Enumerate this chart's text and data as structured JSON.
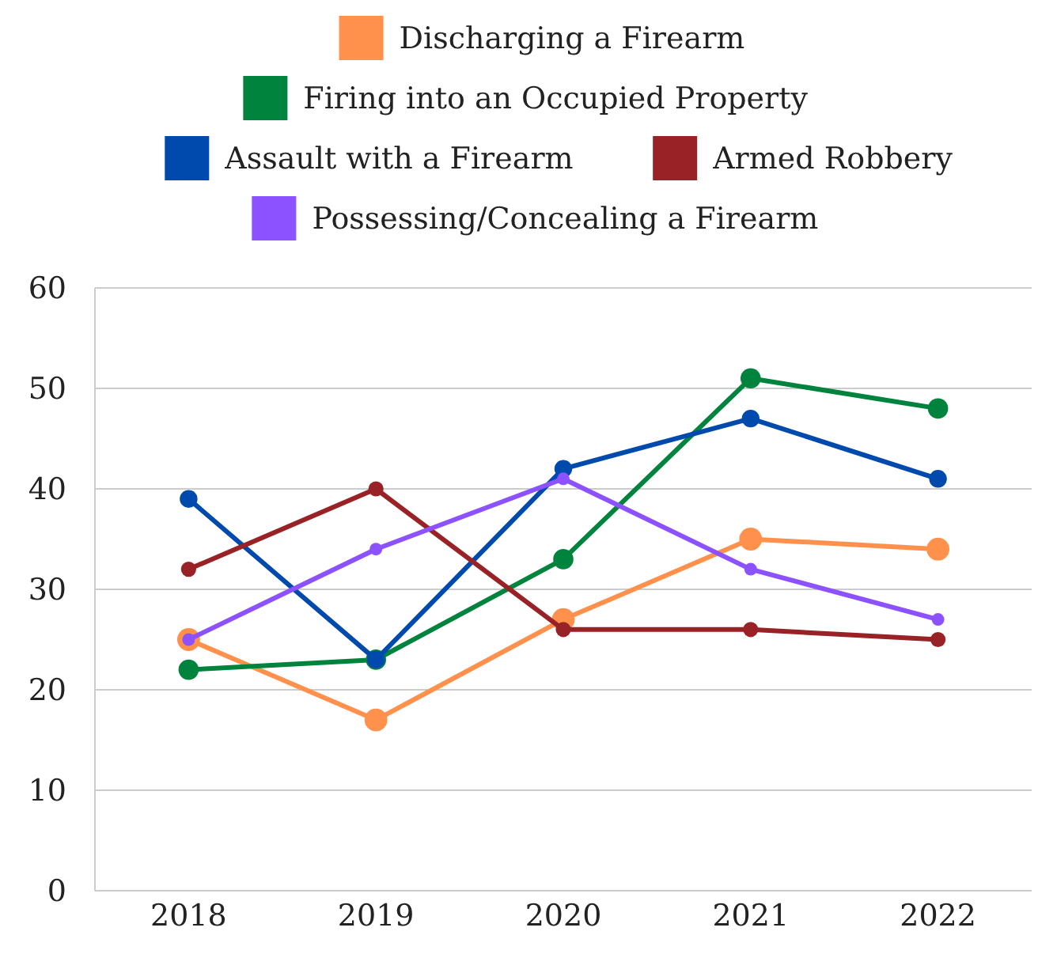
{
  "chart_data": {
    "type": "line",
    "categories": [
      "2018",
      "2019",
      "2020",
      "2021",
      "2022"
    ],
    "series": [
      {
        "name": "Discharging a Firearm",
        "color": "#ff914d",
        "values": [
          25,
          17,
          27,
          35,
          34
        ]
      },
      {
        "name": "Firing into an Occupied Property",
        "color": "#00843d",
        "values": [
          22,
          23,
          33,
          51,
          48
        ]
      },
      {
        "name": "Assault with a Firearm",
        "color": "#004aad",
        "values": [
          39,
          23,
          42,
          47,
          41
        ]
      },
      {
        "name": "Armed Robbery",
        "color": "#992226",
        "values": [
          32,
          40,
          26,
          26,
          25
        ]
      },
      {
        "name": "Possessing/Concealing a Firearm",
        "color": "#8c52ff",
        "values": [
          25,
          34,
          41,
          32,
          27
        ]
      }
    ],
    "ylim": [
      0,
      60
    ],
    "yticks": [
      0,
      10,
      20,
      30,
      40,
      50,
      60
    ],
    "grid": "y",
    "legend": "top",
    "marker": "circle",
    "line_style": "solid"
  }
}
